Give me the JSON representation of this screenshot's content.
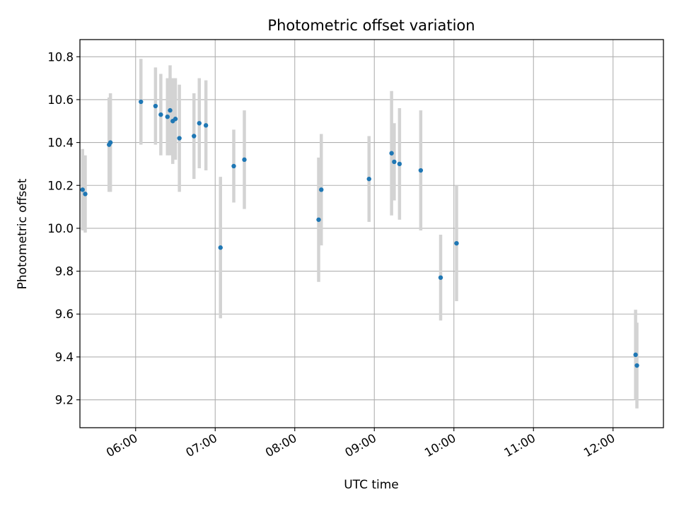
{
  "chart_data": {
    "type": "scatter",
    "title": "Photometric offset variation",
    "xlabel": "UTC time",
    "ylabel": "Photometric offset",
    "x_ticks": [
      "06:00",
      "07:00",
      "08:00",
      "09:00",
      "10:00",
      "11:00",
      "12:00"
    ],
    "y_ticks": [
      "9.2",
      "9.4",
      "9.6",
      "9.8",
      "10.0",
      "10.2",
      "10.4",
      "10.6",
      "10.8"
    ],
    "xlim": [
      "05:18",
      "12:38"
    ],
    "ylim": [
      9.07,
      10.88
    ],
    "grid": true,
    "colors": {
      "point": "#1f77b4",
      "errorbar": "#d3d3d3",
      "grid": "#b0b0b0"
    },
    "points": [
      {
        "x": "05:20",
        "y": 10.18,
        "err": 0.19
      },
      {
        "x": "05:22",
        "y": 10.16,
        "err": 0.18
      },
      {
        "x": "05:40",
        "y": 10.39,
        "err": 0.22
      },
      {
        "x": "05:41",
        "y": 10.4,
        "err": 0.23
      },
      {
        "x": "06:04",
        "y": 10.59,
        "err": 0.2
      },
      {
        "x": "06:15",
        "y": 10.57,
        "err": 0.18
      },
      {
        "x": "06:19",
        "y": 10.53,
        "err": 0.19
      },
      {
        "x": "06:24",
        "y": 10.52,
        "err": 0.18
      },
      {
        "x": "06:26",
        "y": 10.55,
        "err": 0.21
      },
      {
        "x": "06:28",
        "y": 10.5,
        "err": 0.2
      },
      {
        "x": "06:30",
        "y": 10.51,
        "err": 0.19
      },
      {
        "x": "06:33",
        "y": 10.42,
        "err": 0.25
      },
      {
        "x": "06:44",
        "y": 10.43,
        "err": 0.2
      },
      {
        "x": "06:48",
        "y": 10.49,
        "err": 0.21
      },
      {
        "x": "06:53",
        "y": 10.48,
        "err": 0.21
      },
      {
        "x": "07:04",
        "y": 9.91,
        "err": 0.33
      },
      {
        "x": "07:14",
        "y": 10.29,
        "err": 0.17
      },
      {
        "x": "07:22",
        "y": 10.32,
        "err": 0.23
      },
      {
        "x": "08:18",
        "y": 10.04,
        "err": 0.29
      },
      {
        "x": "08:20",
        "y": 10.18,
        "err": 0.26
      },
      {
        "x": "08:56",
        "y": 10.23,
        "err": 0.2
      },
      {
        "x": "09:13",
        "y": 10.35,
        "err": 0.29
      },
      {
        "x": "09:15",
        "y": 10.31,
        "err": 0.18
      },
      {
        "x": "09:19",
        "y": 10.3,
        "err": 0.26
      },
      {
        "x": "09:35",
        "y": 10.27,
        "err": 0.28
      },
      {
        "x": "09:50",
        "y": 9.77,
        "err": 0.2
      },
      {
        "x": "10:02",
        "y": 9.93,
        "err": 0.27
      },
      {
        "x": "12:17",
        "y": 9.41,
        "err": 0.21
      },
      {
        "x": "12:18",
        "y": 9.36,
        "err": 0.2
      }
    ]
  }
}
